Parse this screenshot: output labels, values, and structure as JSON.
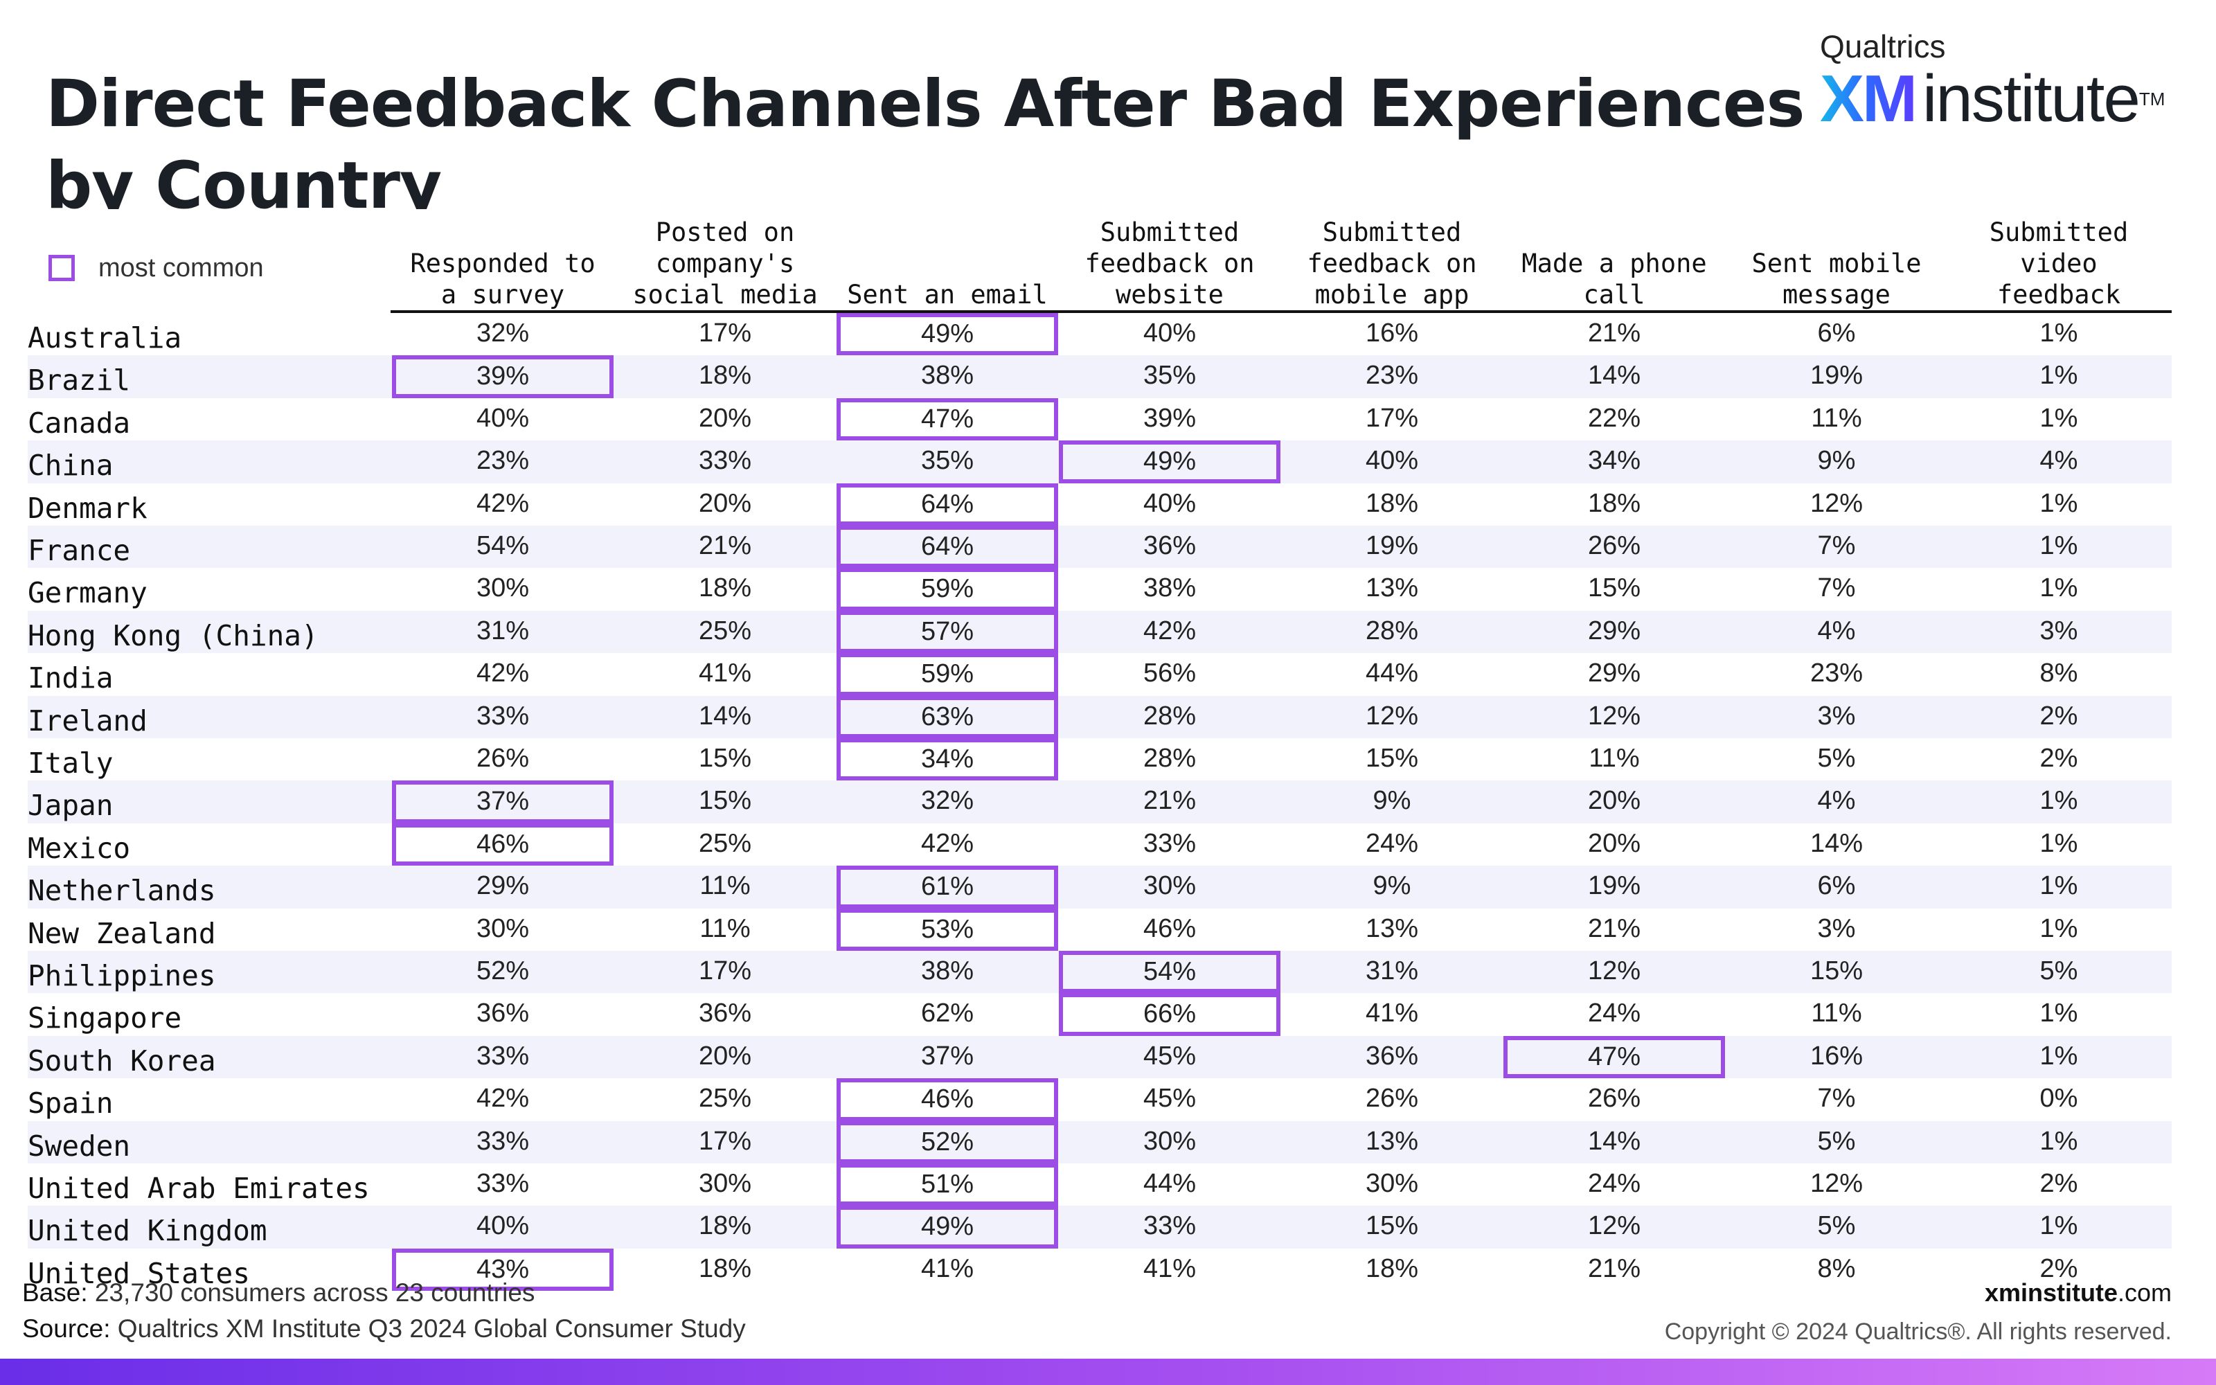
{
  "title": "Direct Feedback Channels After Bad Experiences by Country",
  "brand": {
    "top": "Qualtrics",
    "xm": "XM",
    "word": "institute",
    "tm": "TM"
  },
  "legend": {
    "label": "most common",
    "color": "#9b4de6"
  },
  "footer": {
    "base_key": "Base:",
    "base_value": "23,730 consumers across 23 countries",
    "source_key": "Source:",
    "source_value": "Qualtrics XM Institute Q3 2024 Global Consumer Study",
    "site_bold": "xminstitute",
    "site_rest": ".com",
    "copyright": "Copyright © 2024 Qualtrics®. All rights reserved."
  },
  "chart_data": {
    "type": "table",
    "title": "Direct Feedback Channels After Bad Experiences by Country",
    "columns": [
      "Responded to a survey",
      "Posted on company's social media",
      "Sent an email",
      "Submitted feedback on website",
      "Submitted feedback on mobile app",
      "Made a phone call",
      "Sent mobile message",
      "Submitted video feedback"
    ],
    "rows": [
      {
        "country": "Australia",
        "values": [
          "32%",
          "17%",
          "49%",
          "40%",
          "16%",
          "21%",
          "6%",
          "1%"
        ],
        "most_common": 2
      },
      {
        "country": "Brazil",
        "values": [
          "39%",
          "18%",
          "38%",
          "35%",
          "23%",
          "14%",
          "19%",
          "1%"
        ],
        "most_common": 0
      },
      {
        "country": "Canada",
        "values": [
          "40%",
          "20%",
          "47%",
          "39%",
          "17%",
          "22%",
          "11%",
          "1%"
        ],
        "most_common": 2
      },
      {
        "country": "China",
        "values": [
          "23%",
          "33%",
          "35%",
          "49%",
          "40%",
          "34%",
          "9%",
          "4%"
        ],
        "most_common": 3
      },
      {
        "country": "Denmark",
        "values": [
          "42%",
          "20%",
          "64%",
          "40%",
          "18%",
          "18%",
          "12%",
          "1%"
        ],
        "most_common": 2
      },
      {
        "country": "France",
        "values": [
          "54%",
          "21%",
          "64%",
          "36%",
          "19%",
          "26%",
          "7%",
          "1%"
        ],
        "most_common": 2
      },
      {
        "country": "Germany",
        "values": [
          "30%",
          "18%",
          "59%",
          "38%",
          "13%",
          "15%",
          "7%",
          "1%"
        ],
        "most_common": 2
      },
      {
        "country": "Hong Kong (China)",
        "values": [
          "31%",
          "25%",
          "57%",
          "42%",
          "28%",
          "29%",
          "4%",
          "3%"
        ],
        "most_common": 2
      },
      {
        "country": "India",
        "values": [
          "42%",
          "41%",
          "59%",
          "56%",
          "44%",
          "29%",
          "23%",
          "8%"
        ],
        "most_common": 2
      },
      {
        "country": "Ireland",
        "values": [
          "33%",
          "14%",
          "63%",
          "28%",
          "12%",
          "12%",
          "3%",
          "2%"
        ],
        "most_common": 2
      },
      {
        "country": "Italy",
        "values": [
          "26%",
          "15%",
          "34%",
          "28%",
          "15%",
          "11%",
          "5%",
          "2%"
        ],
        "most_common": 2
      },
      {
        "country": "Japan",
        "values": [
          "37%",
          "15%",
          "32%",
          "21%",
          "9%",
          "20%",
          "4%",
          "1%"
        ],
        "most_common": 0
      },
      {
        "country": "Mexico",
        "values": [
          "46%",
          "25%",
          "42%",
          "33%",
          "24%",
          "20%",
          "14%",
          "1%"
        ],
        "most_common": 0
      },
      {
        "country": "Netherlands",
        "values": [
          "29%",
          "11%",
          "61%",
          "30%",
          "9%",
          "19%",
          "6%",
          "1%"
        ],
        "most_common": 2
      },
      {
        "country": "New Zealand",
        "values": [
          "30%",
          "11%",
          "53%",
          "46%",
          "13%",
          "21%",
          "3%",
          "1%"
        ],
        "most_common": 2
      },
      {
        "country": "Philippines",
        "values": [
          "52%",
          "17%",
          "38%",
          "54%",
          "31%",
          "12%",
          "15%",
          "5%"
        ],
        "most_common": 3
      },
      {
        "country": "Singapore",
        "values": [
          "36%",
          "36%",
          "62%",
          "66%",
          "41%",
          "24%",
          "11%",
          "1%"
        ],
        "most_common": 3
      },
      {
        "country": "South Korea",
        "values": [
          "33%",
          "20%",
          "37%",
          "45%",
          "36%",
          "47%",
          "16%",
          "1%"
        ],
        "most_common": 5
      },
      {
        "country": "Spain",
        "values": [
          "42%",
          "25%",
          "46%",
          "45%",
          "26%",
          "26%",
          "7%",
          "0%"
        ],
        "most_common": 2
      },
      {
        "country": "Sweden",
        "values": [
          "33%",
          "17%",
          "52%",
          "30%",
          "13%",
          "14%",
          "5%",
          "1%"
        ],
        "most_common": 2
      },
      {
        "country": "United Arab Emirates",
        "values": [
          "33%",
          "30%",
          "51%",
          "44%",
          "30%",
          "24%",
          "12%",
          "2%"
        ],
        "most_common": 2
      },
      {
        "country": "United Kingdom",
        "values": [
          "40%",
          "18%",
          "49%",
          "33%",
          "15%",
          "12%",
          "5%",
          "1%"
        ],
        "most_common": 2
      },
      {
        "country": "United States",
        "values": [
          "43%",
          "18%",
          "41%",
          "41%",
          "18%",
          "21%",
          "8%",
          "2%"
        ],
        "most_common": 0
      }
    ]
  }
}
